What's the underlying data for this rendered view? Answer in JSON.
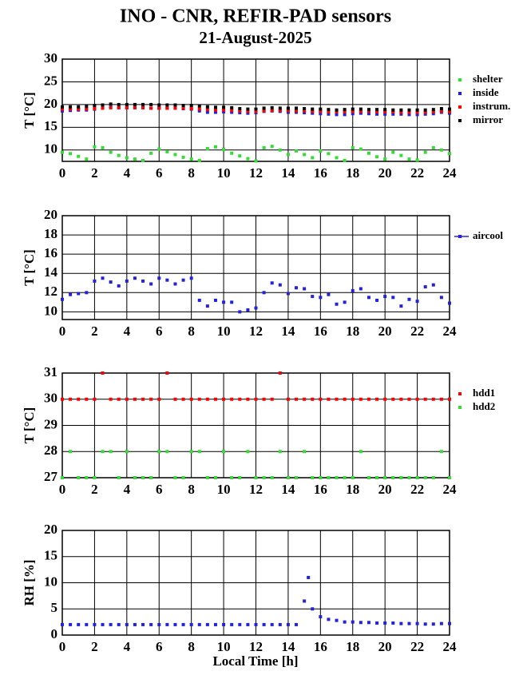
{
  "chart_data": [
    {
      "type": "scatter",
      "title": "INO - CNR, REFIR-PAD sensors",
      "subtitle": "21-August-2025",
      "ylabel": "T [°C]",
      "x": [
        0,
        0.5,
        1,
        1.5,
        2,
        2.5,
        3,
        3.5,
        4,
        4.5,
        5,
        5.5,
        6,
        6.5,
        7,
        7.5,
        8,
        8.5,
        9,
        9.5,
        10,
        10.5,
        11,
        11.5,
        12,
        12.5,
        13,
        13.5,
        14,
        14.5,
        15,
        15.5,
        16,
        16.5,
        17,
        17.5,
        18,
        18.5,
        19,
        19.5,
        20,
        20.5,
        21,
        21.5,
        22,
        22.5,
        23,
        23.5,
        24
      ],
      "series": [
        {
          "name": "shelter",
          "color": "#33dd33",
          "values": [
            9.5,
            9.2,
            8.6,
            8.0,
            10.7,
            10.5,
            9.5,
            8.8,
            8.3,
            8.0,
            7.7,
            9.3,
            10.2,
            9.6,
            9.0,
            8.4,
            8.0,
            7.7,
            10.3,
            10.7,
            10.1,
            9.3,
            8.7,
            8.1,
            7.6,
            10.5,
            10.8,
            10.0,
            9.0,
            9.8,
            9.0,
            8.3,
            9.8,
            9.2,
            8.3,
            7.7,
            10.5,
            10.2,
            9.3,
            8.5,
            8.0,
            9.5,
            8.8,
            8.0,
            7.8,
            9.5,
            10.5,
            10.0,
            9.2
          ]
        },
        {
          "name": "inside",
          "color": "#2222dd",
          "values": [
            18.6,
            18.7,
            18.8,
            18.8,
            19.0,
            19.2,
            19.4,
            19.3,
            19.3,
            19.3,
            19.3,
            19.2,
            19.2,
            19.2,
            19.2,
            19.1,
            19.0,
            18.6,
            18.3,
            18.3,
            18.4,
            18.3,
            18.2,
            18.1,
            18.2,
            18.5,
            18.6,
            18.5,
            18.3,
            18.3,
            18.2,
            18.1,
            18.0,
            17.9,
            17.8,
            17.8,
            18.0,
            18.1,
            18.0,
            17.9,
            17.9,
            17.9,
            17.9,
            17.8,
            17.8,
            17.9,
            18.0,
            18.3,
            18.1
          ]
        },
        {
          "name": "instrum.",
          "color": "#ff0000",
          "values": [
            19.0,
            19.0,
            19.0,
            19.0,
            19.1,
            19.2,
            19.3,
            19.3,
            19.3,
            19.3,
            19.3,
            19.2,
            19.2,
            19.2,
            19.2,
            19.2,
            19.1,
            19.0,
            18.9,
            18.8,
            18.8,
            18.7,
            18.6,
            18.5,
            18.5,
            18.6,
            18.7,
            18.7,
            18.7,
            18.6,
            18.6,
            18.5,
            18.5,
            18.4,
            18.4,
            18.4,
            18.5,
            18.5,
            18.5,
            18.4,
            18.4,
            18.4,
            18.3,
            18.3,
            18.3,
            18.3,
            18.4,
            18.5,
            18.4
          ]
        },
        {
          "name": "mirror",
          "color": "#000000",
          "values": [
            19.5,
            19.5,
            19.5,
            19.6,
            19.8,
            19.9,
            20.1,
            20.0,
            20.0,
            20.0,
            20.0,
            20.0,
            19.9,
            19.9,
            19.9,
            19.8,
            19.8,
            19.7,
            19.5,
            19.4,
            19.4,
            19.3,
            19.1,
            19.0,
            19.0,
            19.2,
            19.3,
            19.2,
            19.2,
            19.2,
            19.1,
            19.0,
            19.0,
            18.9,
            18.8,
            18.9,
            19.0,
            19.0,
            18.9,
            18.9,
            18.9,
            18.8,
            18.8,
            18.8,
            18.8,
            18.8,
            18.9,
            19.1,
            19.0
          ]
        }
      ],
      "xlim": [
        0,
        24
      ],
      "xticks": [
        0,
        2,
        4,
        6,
        8,
        10,
        12,
        14,
        16,
        18,
        20,
        22,
        24
      ],
      "ylim": [
        7.5,
        30
      ],
      "yticks": [
        10,
        15,
        20,
        25,
        30
      ],
      "grid": true,
      "legend": "right"
    },
    {
      "type": "scatter",
      "ylabel": "T [°C]",
      "x": [
        0,
        0.5,
        1,
        1.5,
        2,
        2.5,
        3,
        3.5,
        4,
        4.5,
        5,
        5.5,
        6,
        6.5,
        7,
        7.5,
        8,
        8.5,
        9,
        9.5,
        10,
        10.5,
        11,
        11.5,
        12,
        12.5,
        13,
        13.5,
        14,
        14.5,
        15,
        15.5,
        16,
        16.5,
        17,
        17.5,
        18,
        18.5,
        19,
        19.5,
        20,
        20.5,
        21,
        21.5,
        22,
        22.5,
        23,
        23.5,
        24
      ],
      "series": [
        {
          "name": "aircool",
          "color": "#2222dd",
          "values": [
            11.3,
            11.8,
            11.9,
            12.0,
            13.2,
            13.5,
            13.1,
            12.7,
            13.2,
            13.5,
            13.2,
            12.9,
            13.5,
            13.3,
            12.9,
            13.3,
            13.5,
            11.2,
            10.6,
            11.2,
            11.0,
            11.0,
            10.0,
            10.2,
            10.4,
            12.0,
            13.0,
            12.8,
            11.9,
            12.5,
            12.4,
            11.6,
            11.5,
            11.8,
            10.8,
            11.0,
            12.2,
            12.4,
            11.5,
            11.2,
            11.6,
            11.5,
            10.6,
            11.3,
            11.1,
            12.6,
            12.8,
            11.5,
            10.9
          ]
        }
      ],
      "xlim": [
        0,
        24
      ],
      "xticks": [
        0,
        2,
        4,
        6,
        8,
        10,
        12,
        14,
        16,
        18,
        20,
        22,
        24
      ],
      "ylim": [
        9.2,
        20
      ],
      "yticks": [
        10,
        12,
        14,
        16,
        18,
        20
      ],
      "grid": true,
      "legend": "right"
    },
    {
      "type": "scatter",
      "ylabel": "T [°C]",
      "x": [
        0,
        0.5,
        1,
        1.5,
        2,
        2.5,
        3,
        3.5,
        4,
        4.5,
        5,
        5.5,
        6,
        6.5,
        7,
        7.5,
        8,
        8.5,
        9,
        9.5,
        10,
        10.5,
        11,
        11.5,
        12,
        12.5,
        13,
        13.5,
        14,
        14.5,
        15,
        15.5,
        16,
        16.5,
        17,
        17.5,
        18,
        18.5,
        19,
        19.5,
        20,
        20.5,
        21,
        21.5,
        22,
        22.5,
        23,
        23.5,
        24
      ],
      "series": [
        {
          "name": "hdd1",
          "color": "#ff0000",
          "values": [
            30,
            30,
            30,
            30,
            30,
            31,
            30,
            30,
            30,
            30,
            30,
            30,
            30,
            31,
            30,
            30,
            30,
            30,
            30,
            30,
            30,
            30,
            30,
            30,
            30,
            30,
            30,
            31,
            30,
            30,
            30,
            30,
            30,
            30,
            30,
            30,
            30,
            30,
            30,
            30,
            30,
            30,
            30,
            30,
            30,
            30,
            30,
            30,
            30
          ]
        },
        {
          "name": "hdd2",
          "color": "#33dd33",
          "values": [
            27,
            28,
            27,
            27,
            27,
            28,
            28,
            27,
            28,
            27,
            27,
            27,
            28,
            28,
            27,
            27,
            28,
            28,
            27,
            27,
            28,
            27,
            27,
            28,
            27,
            27,
            27,
            28,
            27,
            27,
            28,
            27,
            27,
            27,
            27,
            27,
            27,
            28,
            27,
            27,
            27,
            27,
            27,
            27,
            27,
            27,
            27,
            28,
            27
          ]
        }
      ],
      "xlim": [
        0,
        24
      ],
      "xticks": [
        0,
        2,
        4,
        6,
        8,
        10,
        12,
        14,
        16,
        18,
        20,
        22,
        24
      ],
      "ylim": [
        27,
        31
      ],
      "yticks": [
        27,
        28,
        29,
        30,
        31
      ],
      "grid": true,
      "legend": "right"
    },
    {
      "type": "scatter",
      "ylabel": "RH [%]",
      "xlabel": "Local Time [h]",
      "x": [
        0,
        0.5,
        1,
        1.5,
        2,
        2.5,
        3,
        3.5,
        4,
        4.5,
        5,
        5.5,
        6,
        6.5,
        7,
        7.5,
        8,
        8.5,
        9,
        9.5,
        10,
        10.5,
        11,
        11.5,
        12,
        12.5,
        13,
        13.5,
        14,
        14.5,
        15,
        15.25,
        15.5,
        16,
        16.5,
        17,
        17.5,
        18,
        18.5,
        19,
        19.5,
        20,
        20.5,
        21,
        21.5,
        22,
        22.5,
        23,
        23.5,
        24
      ],
      "series": [
        {
          "name": "RH",
          "color": "#2222dd",
          "values": [
            2.0,
            2.0,
            2.0,
            2.0,
            2.0,
            2.0,
            2.0,
            2.0,
            2.0,
            2.0,
            2.0,
            2.0,
            2.0,
            2.0,
            2.0,
            2.0,
            2.0,
            2.0,
            2.0,
            2.0,
            2.0,
            2.0,
            2.0,
            2.0,
            2.0,
            2.0,
            2.0,
            2.0,
            2.0,
            2.0,
            6.5,
            11.0,
            5.0,
            3.5,
            3.0,
            2.8,
            2.5,
            2.5,
            2.4,
            2.4,
            2.3,
            2.3,
            2.3,
            2.2,
            2.2,
            2.2,
            2.1,
            2.1,
            2.2,
            2.2
          ]
        }
      ],
      "xlim": [
        0,
        24
      ],
      "xticks": [
        0,
        2,
        4,
        6,
        8,
        10,
        12,
        14,
        16,
        18,
        20,
        22,
        24
      ],
      "ylim": [
        0,
        20
      ],
      "yticks": [
        0,
        5,
        10,
        15,
        20
      ],
      "grid": true,
      "legend": "none"
    }
  ]
}
